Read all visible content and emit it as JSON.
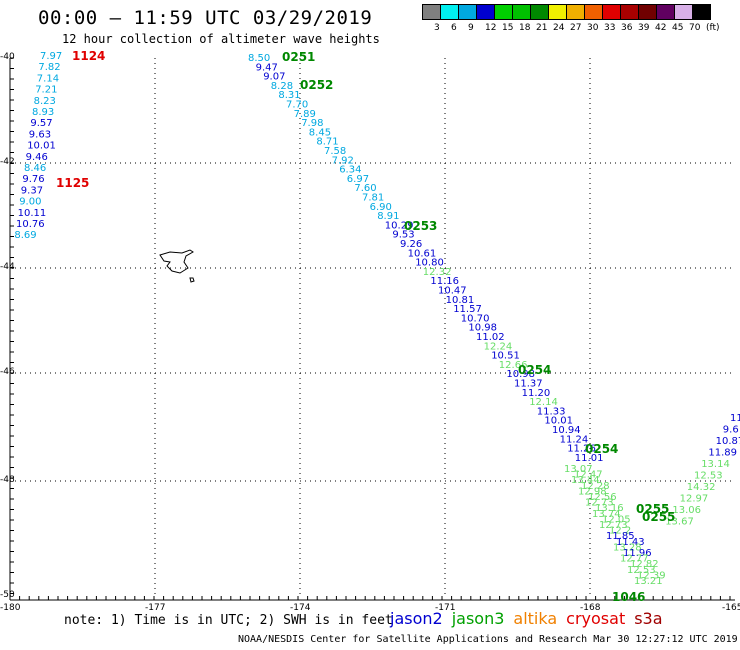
{
  "header": {
    "title": "00:00 – 11:59 UTC 03/29/2019",
    "subtitle": "12 hour collection of altimeter wave heights"
  },
  "colorbar": {
    "colors": [
      "#808080",
      "#00f0f0",
      "#00a8e0",
      "#0000d0",
      "#00d000",
      "#00c000",
      "#008800",
      "#f0f000",
      "#f0b000",
      "#f06000",
      "#e00000",
      "#a80000",
      "#700000",
      "#600060",
      "#d8b0e8",
      "#000000"
    ],
    "labels": [
      "3",
      "6",
      "9",
      "12",
      "15",
      "18",
      "21",
      "24",
      "27",
      "30",
      "33",
      "36",
      "39",
      "42",
      "45",
      "70",
      "(ft)"
    ]
  },
  "axes": {
    "lon_labels": [
      "-180",
      "-177",
      "-174",
      "-171",
      "-168",
      "-165"
    ],
    "lat_labels": [
      "-40",
      "-42",
      "-44",
      "-46",
      "-48",
      "-50"
    ]
  },
  "tracks": [
    {
      "time": "1124",
      "time_color": "#e00000",
      "vals": [
        {
          "v": "7.97",
          "c": "#00a8e0"
        },
        {
          "v": "7.82",
          "c": "#00a8e0"
        },
        {
          "v": "7.14",
          "c": "#00a8e0"
        },
        {
          "v": "7.21",
          "c": "#00a8e0"
        },
        {
          "v": "8.23",
          "c": "#00a8e0"
        },
        {
          "v": "8.93",
          "c": "#00a8e0"
        },
        {
          "v": "9.57",
          "c": "#0000d0"
        },
        {
          "v": "9.63",
          "c": "#0000d0"
        },
        {
          "v": "10.01",
          "c": "#0000d0"
        },
        {
          "v": "9.46",
          "c": "#0000d0"
        },
        {
          "v": "8.46",
          "c": "#00a8e0"
        },
        {
          "v": "9.76",
          "c": "#0000d0"
        },
        {
          "v": "9.37",
          "c": "#0000d0"
        },
        {
          "v": "9.00",
          "c": "#00a8e0"
        },
        {
          "v": "10.11",
          "c": "#0000d0"
        },
        {
          "v": "10.76",
          "c": "#0000d0"
        },
        {
          "v": "8.69",
          "c": "#00a8e0"
        }
      ]
    },
    {
      "time2": "1125"
    },
    {
      "time_labels": [
        "0251",
        "0252",
        "0253",
        "0254"
      ],
      "vals": [
        {
          "v": "8.50",
          "c": "#00a8e0"
        },
        {
          "v": "9.47",
          "c": "#0000d0"
        },
        {
          "v": "9.07",
          "c": "#0000d0"
        },
        {
          "v": "8.28",
          "c": "#00a8e0"
        },
        {
          "v": "8.31",
          "c": "#00a8e0"
        },
        {
          "v": "7.70",
          "c": "#00a8e0"
        },
        {
          "v": "7.89",
          "c": "#00a8e0"
        },
        {
          "v": "7.98",
          "c": "#00a8e0"
        },
        {
          "v": "8.45",
          "c": "#00a8e0"
        },
        {
          "v": "8.71",
          "c": "#00a8e0"
        },
        {
          "v": "7.58",
          "c": "#00a8e0"
        },
        {
          "v": "7.92",
          "c": "#00a8e0"
        },
        {
          "v": "6.34",
          "c": "#00a8e0"
        },
        {
          "v": "6.97",
          "c": "#00a8e0"
        },
        {
          "v": "7.60",
          "c": "#00a8e0"
        },
        {
          "v": "7.81",
          "c": "#00a8e0"
        },
        {
          "v": "6.90",
          "c": "#00a8e0"
        },
        {
          "v": "8.91",
          "c": "#00a8e0"
        },
        {
          "v": "10.29",
          "c": "#0000d0"
        },
        {
          "v": "9.53",
          "c": "#0000d0"
        },
        {
          "v": "9.26",
          "c": "#0000d0"
        },
        {
          "v": "10.61",
          "c": "#0000d0"
        },
        {
          "v": "10.80",
          "c": "#0000d0"
        },
        {
          "v": "12.32",
          "c": "#66dd66"
        },
        {
          "v": "11.16",
          "c": "#0000d0"
        },
        {
          "v": "10.47",
          "c": "#0000d0"
        },
        {
          "v": "10.81",
          "c": "#0000d0"
        },
        {
          "v": "11.57",
          "c": "#0000d0"
        },
        {
          "v": "10.70",
          "c": "#0000d0"
        },
        {
          "v": "10.98",
          "c": "#0000d0"
        },
        {
          "v": "11.02",
          "c": "#0000d0"
        },
        {
          "v": "12.24",
          "c": "#66dd66"
        },
        {
          "v": "10.51",
          "c": "#0000d0"
        },
        {
          "v": "12.66",
          "c": "#66dd66"
        },
        {
          "v": "10.98",
          "c": "#0000d0"
        },
        {
          "v": "11.37",
          "c": "#0000d0"
        },
        {
          "v": "11.20",
          "c": "#0000d0"
        },
        {
          "v": "12.14",
          "c": "#66dd66"
        },
        {
          "v": "11.33",
          "c": "#0000d0"
        },
        {
          "v": "10.01",
          "c": "#0000d0"
        },
        {
          "v": "10.94",
          "c": "#0000d0"
        },
        {
          "v": "11.24",
          "c": "#0000d0"
        },
        {
          "v": "11.26",
          "c": "#0000d0"
        },
        {
          "v": "11.01",
          "c": "#0000d0"
        }
      ]
    },
    {
      "time_labels": [
        "0254",
        "0255",
        "0255"
      ],
      "right_vals": [
        {
          "v": "11",
          "c": "#0000d0"
        },
        {
          "v": "9.6",
          "c": "#0000d0"
        },
        {
          "v": "10.87",
          "c": "#0000d0"
        },
        {
          "v": "11.89",
          "c": "#0000d0"
        },
        {
          "v": "13.14",
          "c": "#66dd66"
        },
        {
          "v": "12.53",
          "c": "#66dd66"
        },
        {
          "v": "14.32",
          "c": "#66dd66"
        },
        {
          "v": "12.97",
          "c": "#66dd66"
        },
        {
          "v": "13.06",
          "c": "#66dd66"
        },
        {
          "v": "13.67",
          "c": "#66dd66"
        }
      ],
      "lower_vals": [
        {
          "v": "13.07",
          "c": "#66dd66"
        },
        {
          "v": "12.47",
          "c": "#66dd66"
        },
        {
          "v": "13.44",
          "c": "#66dd66"
        },
        {
          "v": "12.28",
          "c": "#66dd66"
        },
        {
          "v": "12.98",
          "c": "#66dd66"
        },
        {
          "v": "12.56",
          "c": "#66dd66"
        },
        {
          "v": "12.73",
          "c": "#66dd66"
        },
        {
          "v": "13.16",
          "c": "#66dd66"
        },
        {
          "v": "13.74",
          "c": "#66dd66"
        },
        {
          "v": "12.05",
          "c": "#66dd66"
        },
        {
          "v": "12.73",
          "c": "#66dd66"
        },
        {
          "v": "12.2",
          "c": "#66dd66"
        },
        {
          "v": "11.85",
          "c": "#0000d0"
        },
        {
          "v": "11.43",
          "c": "#0000d0"
        },
        {
          "v": "13.28",
          "c": "#66dd66"
        },
        {
          "v": "11.96",
          "c": "#0000d0"
        },
        {
          "v": "12.77",
          "c": "#66dd66"
        },
        {
          "v": "12.82",
          "c": "#66dd66"
        },
        {
          "v": "12.53",
          "c": "#66dd66"
        },
        {
          "v": "12.39",
          "c": "#66dd66"
        },
        {
          "v": "13.21",
          "c": "#66dd66"
        }
      ],
      "bottom_time": "1046"
    }
  ],
  "footer": {
    "note": "note: 1) Time is in UTC; 2) SWH is in feet",
    "legend": [
      {
        "name": "jason2",
        "color": "#0000d0"
      },
      {
        "name": "jason3",
        "color": "#00a000"
      },
      {
        "name": "altika",
        "color": "#f08000"
      },
      {
        "name": "cryosat",
        "color": "#e00000"
      },
      {
        "name": "s3a",
        "color": "#a00000"
      }
    ],
    "credit": "NOAA/NESDIS Center for Satellite Applications and Research    Mar 30 12:27:12 UTC 2019"
  }
}
